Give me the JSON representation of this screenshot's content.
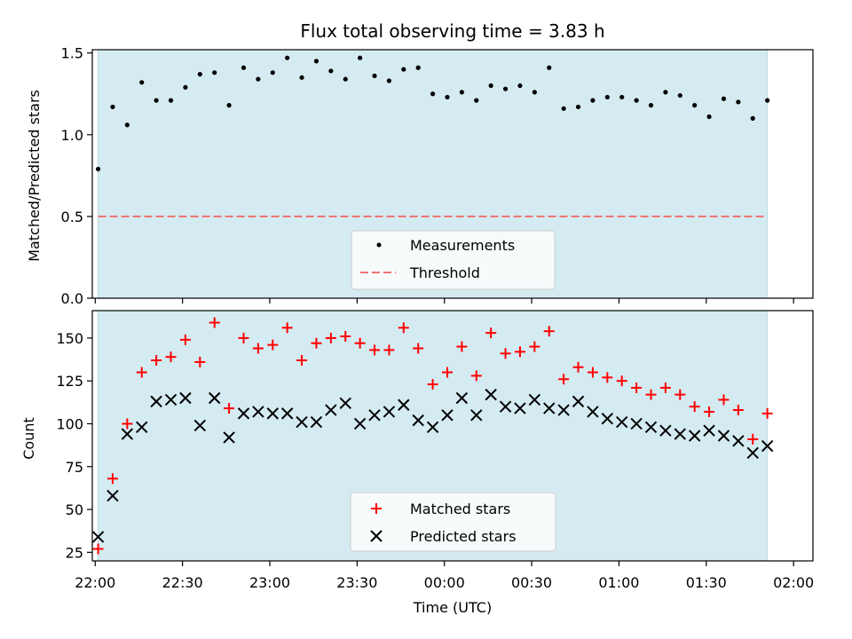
{
  "chart_data": [
    {
      "type": "scatter",
      "title": "Flux total observing time = 3.83 h",
      "xlabel": "",
      "ylabel": "Matched/Predicted stars",
      "xlim": [
        "21:59:00",
        "02:06:40"
      ],
      "ylim": [
        0,
        1.52
      ],
      "yticks": [
        0,
        0.5,
        1.0,
        1.5
      ],
      "ytick_labels": [
        "0.0",
        "0.5",
        "1.0",
        "1.5"
      ],
      "grid": false,
      "legend_position": "lower-center",
      "shaded_span": {
        "start": "22:01:00",
        "end": "01:51:00",
        "color": "#d4ebf1"
      },
      "threshold": {
        "name": "Threshold",
        "value": 0.5,
        "color": "#f07171",
        "style": "dashed"
      },
      "series": [
        {
          "name": "Measurements",
          "marker": "dot",
          "color": "#000000",
          "x": [
            "22:01:00",
            "22:06:00",
            "22:11:00",
            "22:16:00",
            "22:21:00",
            "22:26:00",
            "22:31:00",
            "22:36:00",
            "22:41:00",
            "22:46:00",
            "22:51:00",
            "22:56:00",
            "23:01:00",
            "23:06:00",
            "23:11:00",
            "23:16:00",
            "23:21:00",
            "23:26:00",
            "23:31:00",
            "23:36:00",
            "23:41:00",
            "23:46:00",
            "23:51:00",
            "23:56:00",
            "00:01:00",
            "00:06:00",
            "00:11:00",
            "00:16:00",
            "00:21:00",
            "00:26:00",
            "00:31:00",
            "00:36:00",
            "00:41:00",
            "00:46:00",
            "00:51:00",
            "00:56:00",
            "01:01:00",
            "01:06:00",
            "01:11:00",
            "01:16:00",
            "01:21:00",
            "01:26:00",
            "01:31:00",
            "01:36:00",
            "01:41:00",
            "01:46:00",
            "01:51:00"
          ],
          "y": [
            0.79,
            1.17,
            1.06,
            1.32,
            1.21,
            1.21,
            1.29,
            1.37,
            1.38,
            1.18,
            1.41,
            1.34,
            1.38,
            1.47,
            1.35,
            1.45,
            1.39,
            1.34,
            1.47,
            1.36,
            1.33,
            1.4,
            1.41,
            1.25,
            1.23,
            1.26,
            1.21,
            1.3,
            1.28,
            1.3,
            1.26,
            1.41,
            1.16,
            1.17,
            1.21,
            1.23,
            1.23,
            1.21,
            1.18,
            1.26,
            1.24,
            1.18,
            1.11,
            1.22,
            1.2,
            1.1,
            1.21
          ]
        }
      ]
    },
    {
      "type": "scatter",
      "title": "",
      "xlabel": "Time (UTC)",
      "ylabel": "Count",
      "xlim": [
        "21:59:00",
        "02:06:40"
      ],
      "ylim": [
        20,
        166
      ],
      "yticks": [
        25,
        50,
        75,
        100,
        125,
        150
      ],
      "ytick_labels": [
        "25",
        "50",
        "75",
        "100",
        "125",
        "150"
      ],
      "xticks": [
        "22:00",
        "22:30",
        "23:00",
        "23:30",
        "00:00",
        "00:30",
        "01:00",
        "01:30",
        "02:00"
      ],
      "grid": false,
      "legend_position": "lower-center",
      "shaded_span": {
        "start": "22:01:00",
        "end": "01:51:00",
        "color": "#d4ebf1"
      },
      "series": [
        {
          "name": "Matched stars",
          "marker": "plus",
          "color": "#ff0000",
          "x": [
            "22:01:00",
            "22:06:00",
            "22:11:00",
            "22:16:00",
            "22:21:00",
            "22:26:00",
            "22:31:00",
            "22:36:00",
            "22:41:00",
            "22:46:00",
            "22:51:00",
            "22:56:00",
            "23:01:00",
            "23:06:00",
            "23:11:00",
            "23:16:00",
            "23:21:00",
            "23:26:00",
            "23:31:00",
            "23:36:00",
            "23:41:00",
            "23:46:00",
            "23:51:00",
            "23:56:00",
            "00:01:00",
            "00:06:00",
            "00:11:00",
            "00:16:00",
            "00:21:00",
            "00:26:00",
            "00:31:00",
            "00:36:00",
            "00:41:00",
            "00:46:00",
            "00:51:00",
            "00:56:00",
            "01:01:00",
            "01:06:00",
            "01:11:00",
            "01:16:00",
            "01:21:00",
            "01:26:00",
            "01:31:00",
            "01:36:00",
            "01:41:00",
            "01:46:00",
            "01:51:00"
          ],
          "y": [
            27,
            68,
            100,
            130,
            137,
            139,
            149,
            136,
            159,
            109,
            150,
            144,
            146,
            156,
            137,
            147,
            150,
            151,
            147,
            143,
            143,
            156,
            144,
            123,
            130,
            145,
            128,
            153,
            141,
            142,
            145,
            154,
            126,
            133,
            130,
            127,
            125,
            121,
            117,
            121,
            117,
            110,
            107,
            114,
            108,
            91,
            106
          ]
        },
        {
          "name": "Predicted stars",
          "marker": "x",
          "color": "#000000",
          "x": [
            "22:01:00",
            "22:06:00",
            "22:11:00",
            "22:16:00",
            "22:21:00",
            "22:26:00",
            "22:31:00",
            "22:36:00",
            "22:41:00",
            "22:46:00",
            "22:51:00",
            "22:56:00",
            "23:01:00",
            "23:06:00",
            "23:11:00",
            "23:16:00",
            "23:21:00",
            "23:26:00",
            "23:31:00",
            "23:36:00",
            "23:41:00",
            "23:46:00",
            "23:51:00",
            "23:56:00",
            "00:01:00",
            "00:06:00",
            "00:11:00",
            "00:16:00",
            "00:21:00",
            "00:26:00",
            "00:31:00",
            "00:36:00",
            "00:41:00",
            "00:46:00",
            "00:51:00",
            "00:56:00",
            "01:01:00",
            "01:06:00",
            "01:11:00",
            "01:16:00",
            "01:21:00",
            "01:26:00",
            "01:31:00",
            "01:36:00",
            "01:41:00",
            "01:46:00",
            "01:51:00"
          ],
          "y": [
            34,
            58,
            94,
            98,
            113,
            114,
            115,
            99,
            115,
            92,
            106,
            107,
            106,
            106,
            101,
            101,
            108,
            112,
            100,
            105,
            107,
            111,
            102,
            98,
            105,
            115,
            105,
            117,
            110,
            109,
            114,
            109,
            108,
            113,
            107,
            103,
            101,
            100,
            98,
            96,
            94,
            93,
            96,
            93,
            90,
            83,
            87
          ]
        }
      ]
    }
  ]
}
